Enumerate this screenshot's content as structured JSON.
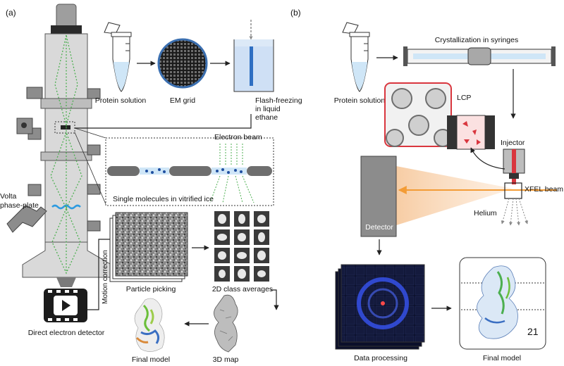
{
  "panel_a": {
    "label": "(a)",
    "protein_solution": "Protein solution",
    "em_grid": "EM grid",
    "flash_freezing": [
      "Flash-freezing",
      "in liquid",
      "ethane"
    ],
    "electron_beam": "Electron beam",
    "single_molecules": "Single molecules in vitrified ice",
    "volta": [
      "Volta",
      "phase-plate"
    ],
    "motion_correction": "Motion correction",
    "particle_picking": "Particle picking",
    "class_averages": "2D class averages",
    "map_3d": "3D map",
    "final_model": "Final model",
    "detector": "Direct electron detector"
  },
  "panel_b": {
    "label": "(b)",
    "protein_solution": "Protein solution",
    "crystallization": "Crystallization in syringes",
    "lcp": "LCP",
    "injector": "Injector",
    "xfel_beam": "XFEL beam",
    "helium": "Helium",
    "detector": "Detector",
    "data_processing": "Data processing",
    "final_model": "Final model",
    "model_number": "21"
  },
  "colors": {
    "beam_green": "#4caf50",
    "xfel_orange": "#f39c36",
    "lcp_red": "#d9363e",
    "ice_blue": "#cfe6f7",
    "column_gray": "#d9d9d9"
  }
}
